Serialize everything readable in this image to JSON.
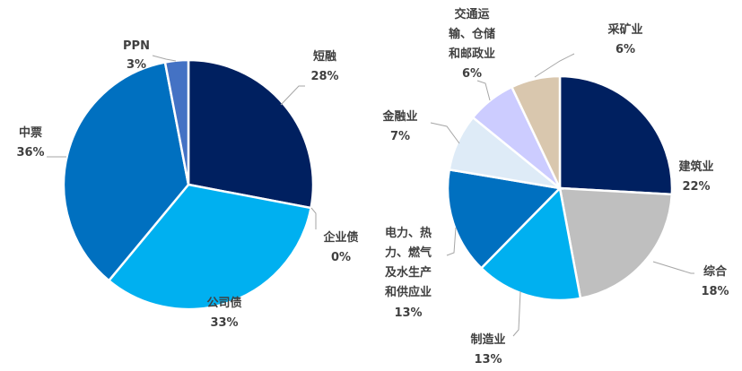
{
  "chart_data": [
    {
      "type": "pie",
      "series": [
        {
          "values": [
            {
              "label": "短融",
              "value": 28,
              "pct": "28%",
              "color": "#002060"
            },
            {
              "label": "企业债",
              "value": 0,
              "pct": "0%",
              "color": "#4472c4"
            },
            {
              "label": "公司债",
              "value": 33,
              "pct": "33%",
              "color": "#00b0f0"
            },
            {
              "label": "中票",
              "value": 36,
              "pct": "36%",
              "color": "#0070c0"
            },
            {
              "label": "PPN",
              "value": 3,
              "pct": "3%",
              "color": "#4472c4"
            }
          ]
        }
      ]
    },
    {
      "type": "pie",
      "series": [
        {
          "values": [
            {
              "label": "建筑业",
              "value": 22,
              "pct": "22%",
              "color": "#002060"
            },
            {
              "label": "综合",
              "value": 18,
              "pct": "18%",
              "color": "#bfbfbf"
            },
            {
              "label": "制造业",
              "value": 13,
              "pct": "13%",
              "color": "#00b0f0"
            },
            {
              "label": "电力、热力、燃气及水生产和供应业",
              "value": 13,
              "pct": "13%",
              "color": "#0070c0"
            },
            {
              "label": "金融业",
              "value": 7,
              "pct": "7%",
              "color": "#deebf7"
            },
            {
              "label": "交通运输、仓储和邮政业",
              "value": 6,
              "pct": "6%",
              "color": "#ccccff"
            },
            {
              "label": "采矿业",
              "value": 6,
              "pct": "6%",
              "color": "#d9c7ae"
            }
          ]
        }
      ]
    }
  ]
}
